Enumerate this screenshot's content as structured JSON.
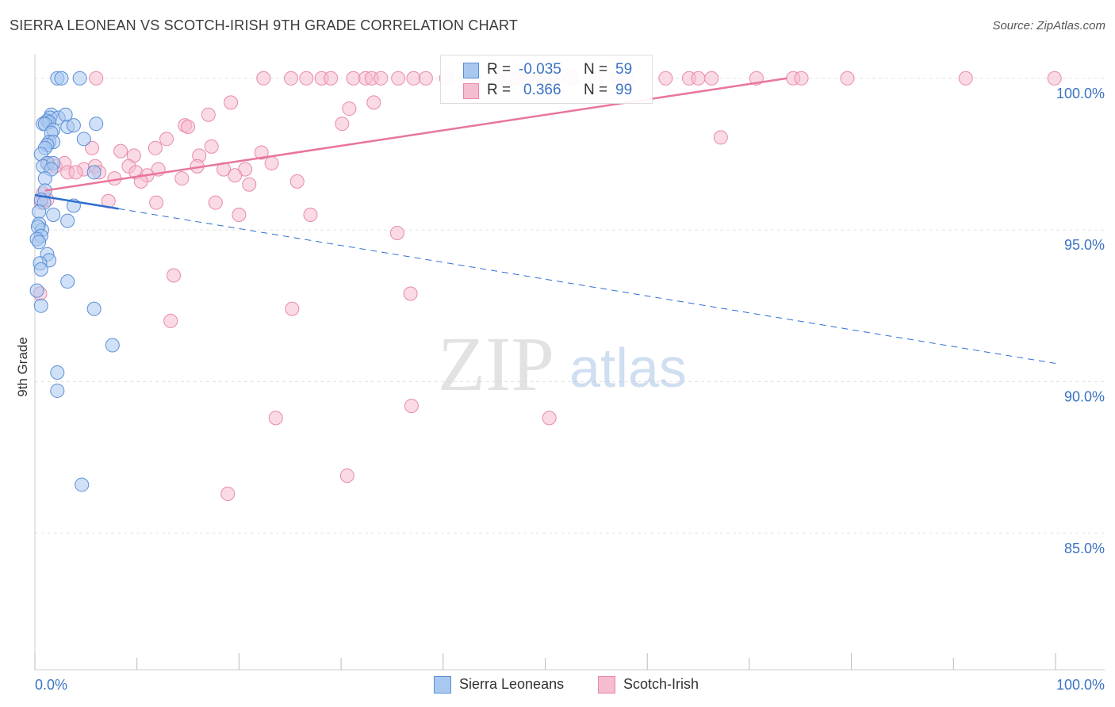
{
  "header": {
    "title": "SIERRA LEONEAN VS SCOTCH-IRISH 9TH GRADE CORRELATION CHART",
    "source": "Source: ZipAtlas.com"
  },
  "watermark": {
    "zip": "ZIP",
    "atlas": "atlas"
  },
  "legend": {
    "rows": [
      {
        "r_label": "R =",
        "r_value": "-0.035",
        "n_label": "N =",
        "n_value": "59"
      },
      {
        "r_label": "R =",
        "r_value": "0.366",
        "n_label": "N =",
        "n_value": "99"
      }
    ]
  },
  "bottom_legend": [
    "Sierra Leoneans",
    "Scotch-Irish"
  ],
  "colors": {
    "blue_fill": "#a9c8f0",
    "blue_stroke": "#5b8fd6",
    "blue_line": "#2f6fd0",
    "pink_fill": "#f6bcd0",
    "pink_stroke": "#e88aa8",
    "pink_line": "#e8769a",
    "label_blue": "#3b73c4",
    "grid": "#e4e4e4"
  },
  "chart_data": {
    "type": "scatter",
    "title": "SIERRA LEONEAN VS SCOTCH-IRISH 9TH GRADE CORRELATION CHART",
    "xlabel": "",
    "ylabel": "9th Grade",
    "xlim": [
      0,
      100
    ],
    "ylim": [
      80.5,
      100.7
    ],
    "x_tick_labels": [
      "0.0%",
      "100.0%"
    ],
    "y_ticks": [
      85,
      90,
      95,
      100
    ],
    "y_tick_labels": [
      "85.0%",
      "90.0%",
      "95.0%",
      "100.0%"
    ],
    "series": [
      {
        "name": "Sierra Leoneans",
        "color": "blue",
        "r": -0.035,
        "n": 59,
        "trend_solid": [
          [
            0,
            96.15
          ],
          [
            8.2,
            95.7
          ]
        ],
        "trend_dashed": [
          [
            8.2,
            95.7
          ],
          [
            100,
            90.6
          ]
        ],
        "points": [
          [
            2.2,
            100
          ],
          [
            2.6,
            100
          ],
          [
            4.4,
            100
          ],
          [
            1.6,
            98.8
          ],
          [
            1.5,
            98.7
          ],
          [
            2.3,
            98.7
          ],
          [
            3.0,
            98.8
          ],
          [
            1.2,
            98.6
          ],
          [
            1.4,
            98.55
          ],
          [
            0.8,
            98.5
          ],
          [
            1.0,
            98.5
          ],
          [
            3.2,
            98.4
          ],
          [
            1.8,
            98.3
          ],
          [
            1.6,
            98.2
          ],
          [
            3.8,
            98.45
          ],
          [
            6.0,
            98.5
          ],
          [
            4.8,
            98.0
          ],
          [
            1.4,
            97.9
          ],
          [
            1.8,
            97.9
          ],
          [
            1.2,
            97.8
          ],
          [
            1.0,
            97.7
          ],
          [
            0.6,
            97.5
          ],
          [
            1.2,
            97.2
          ],
          [
            0.8,
            97.1
          ],
          [
            1.8,
            97.2
          ],
          [
            1.6,
            97.0
          ],
          [
            5.8,
            96.9
          ],
          [
            1.0,
            96.7
          ],
          [
            1.0,
            96.3
          ],
          [
            0.6,
            96.0
          ],
          [
            0.9,
            95.9
          ],
          [
            3.8,
            95.8
          ],
          [
            0.4,
            95.6
          ],
          [
            1.8,
            95.5
          ],
          [
            3.2,
            95.3
          ],
          [
            0.4,
            95.2
          ],
          [
            0.7,
            95.0
          ],
          [
            0.3,
            95.1
          ],
          [
            0.6,
            94.8
          ],
          [
            0.2,
            94.7
          ],
          [
            0.4,
            94.6
          ],
          [
            1.2,
            94.2
          ],
          [
            1.4,
            94.0
          ],
          [
            0.5,
            93.9
          ],
          [
            0.6,
            93.7
          ],
          [
            3.2,
            93.3
          ],
          [
            0.2,
            93.0
          ],
          [
            0.6,
            92.5
          ],
          [
            5.8,
            92.4
          ],
          [
            7.6,
            91.2
          ],
          [
            2.2,
            90.3
          ],
          [
            2.2,
            89.7
          ],
          [
            4.6,
            86.6
          ]
        ]
      },
      {
        "name": "Scotch-Irish",
        "color": "pink",
        "r": 0.366,
        "n": 99,
        "trend_solid": [
          [
            1.0,
            96.3
          ],
          [
            73.7,
            100
          ]
        ],
        "points": [
          [
            22.4,
            100
          ],
          [
            25.1,
            100
          ],
          [
            26.6,
            100
          ],
          [
            28.1,
            100
          ],
          [
            29.0,
            100
          ],
          [
            31.2,
            100
          ],
          [
            32.4,
            100
          ],
          [
            33.0,
            100
          ],
          [
            33.9,
            100
          ],
          [
            35.6,
            100
          ],
          [
            37.1,
            100
          ],
          [
            38.3,
            100
          ],
          [
            40.3,
            100
          ],
          [
            42.3,
            100
          ],
          [
            43.0,
            100
          ],
          [
            45.2,
            100
          ],
          [
            46.6,
            100
          ],
          [
            47.3,
            100
          ],
          [
            48.2,
            100
          ],
          [
            49.3,
            100
          ],
          [
            50.0,
            100
          ],
          [
            51.2,
            100
          ],
          [
            52.6,
            100
          ],
          [
            55.0,
            100
          ],
          [
            57.0,
            100
          ],
          [
            58.1,
            100
          ],
          [
            61.8,
            100
          ],
          [
            64.1,
            100
          ],
          [
            65.0,
            100
          ],
          [
            66.3,
            100
          ],
          [
            70.7,
            100
          ],
          [
            74.3,
            100
          ],
          [
            75.1,
            100
          ],
          [
            79.6,
            100
          ],
          [
            91.2,
            100
          ],
          [
            99.9,
            100
          ],
          [
            6.0,
            100
          ],
          [
            19.2,
            99.2
          ],
          [
            30.8,
            99.0
          ],
          [
            33.2,
            99.2
          ],
          [
            17.0,
            98.8
          ],
          [
            14.7,
            98.45
          ],
          [
            15.0,
            98.4
          ],
          [
            30.1,
            98.5
          ],
          [
            67.2,
            98.05
          ],
          [
            12.9,
            98.0
          ],
          [
            5.6,
            97.7
          ],
          [
            11.8,
            97.7
          ],
          [
            17.3,
            97.75
          ],
          [
            8.4,
            97.6
          ],
          [
            9.7,
            97.45
          ],
          [
            22.2,
            97.55
          ],
          [
            16.1,
            97.45
          ],
          [
            1.3,
            97.2
          ],
          [
            2.0,
            97.1
          ],
          [
            2.9,
            97.2
          ],
          [
            4.8,
            97.0
          ],
          [
            5.9,
            97.1
          ],
          [
            6.3,
            96.9
          ],
          [
            9.2,
            97.1
          ],
          [
            12.1,
            97.0
          ],
          [
            15.9,
            97.1
          ],
          [
            18.5,
            97.0
          ],
          [
            20.6,
            97.0
          ],
          [
            23.2,
            97.2
          ],
          [
            9.9,
            96.9
          ],
          [
            11.0,
            96.8
          ],
          [
            14.4,
            96.7
          ],
          [
            19.6,
            96.8
          ],
          [
            7.8,
            96.7
          ],
          [
            10.4,
            96.6
          ],
          [
            21.0,
            96.5
          ],
          [
            25.7,
            96.6
          ],
          [
            3.2,
            96.9
          ],
          [
            4.0,
            96.9
          ],
          [
            0.8,
            96.2
          ],
          [
            0.6,
            95.9
          ],
          [
            1.2,
            96.0
          ],
          [
            7.2,
            95.95
          ],
          [
            11.9,
            95.9
          ],
          [
            17.7,
            95.9
          ],
          [
            20.0,
            95.5
          ],
          [
            27.0,
            95.5
          ],
          [
            35.5,
            94.9
          ],
          [
            13.6,
            93.5
          ],
          [
            36.8,
            92.9
          ],
          [
            0.5,
            92.9
          ],
          [
            25.2,
            92.4
          ],
          [
            13.3,
            92.0
          ],
          [
            36.9,
            89.2
          ],
          [
            23.6,
            88.8
          ],
          [
            50.4,
            88.8
          ],
          [
            30.6,
            86.9
          ],
          [
            18.9,
            86.3
          ]
        ]
      }
    ]
  }
}
